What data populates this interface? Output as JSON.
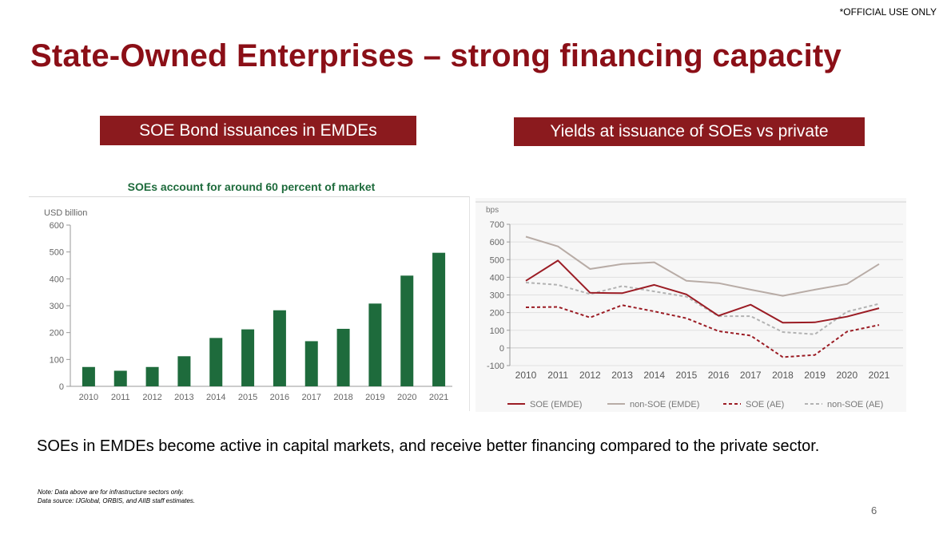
{
  "header": {
    "official": "*OFFICIAL USE ONLY",
    "title": "State-Owned Enterprises – strong financing capacity",
    "banner_left": "SOE Bond issuances in EMDEs",
    "banner_right": "Yields at issuance of SOEs vs private"
  },
  "colors": {
    "title": "#8b0f17",
    "banner": "#8b1a1e",
    "bar": "#1e6b3c",
    "soe_emde": "#9b1c24",
    "non_soe_emde": "#b8aca6",
    "soe_ae": "#9b1c24",
    "non_soe_ae": "#b2b2b2"
  },
  "chart_data": [
    {
      "type": "bar",
      "title": "SOEs account for around 60 percent of market",
      "ylabel": "USD billion",
      "xlabel": "",
      "ylim": [
        0,
        600
      ],
      "yticks": [
        0,
        100,
        200,
        300,
        400,
        500,
        600
      ],
      "grid": false,
      "categories": [
        "2010",
        "2011",
        "2012",
        "2013",
        "2014",
        "2015",
        "2016",
        "2017",
        "2018",
        "2019",
        "2020",
        "2021"
      ],
      "values": [
        72,
        58,
        72,
        112,
        180,
        212,
        283,
        168,
        214,
        308,
        412,
        497
      ]
    },
    {
      "type": "line",
      "ylabel": "bps",
      "xlabel": "",
      "ylim": [
        -100,
        700
      ],
      "yticks": [
        -100,
        0,
        100,
        200,
        300,
        400,
        500,
        600,
        700
      ],
      "grid": true,
      "legend": "bottom",
      "x": [
        "2010",
        "2011",
        "2012",
        "2013",
        "2014",
        "2015",
        "2016",
        "2017",
        "2018",
        "2019",
        "2020",
        "2021"
      ],
      "series": [
        {
          "name": "SOE (EMDE)",
          "style": "solid",
          "color": "#9b1c24",
          "values": [
            380,
            495,
            312,
            310,
            357,
            303,
            182,
            245,
            143,
            145,
            177,
            225
          ]
        },
        {
          "name": "non-SOE (EMDE)",
          "style": "solid",
          "color": "#b8aca6",
          "values": [
            630,
            575,
            447,
            475,
            485,
            380,
            367,
            330,
            295,
            330,
            362,
            475
          ]
        },
        {
          "name": "SOE (AE)",
          "style": "dashed",
          "color": "#9b1c24",
          "values": [
            230,
            232,
            172,
            242,
            207,
            168,
            95,
            70,
            -52,
            -40,
            92,
            130
          ]
        },
        {
          "name": "non-SOE (AE)",
          "style": "dashed",
          "color": "#b2b2b2",
          "values": [
            370,
            357,
            305,
            350,
            320,
            290,
            180,
            180,
            90,
            77,
            205,
            250
          ]
        }
      ]
    }
  ],
  "summary": "SOEs in EMDEs become active in capital markets, and receive better financing compared to the private sector.",
  "notes": {
    "line1": "Note: Data above are for infrastructure sectors only.",
    "line2": "Data source: IJGlobal, ORBIS, and AIIB staff estimates."
  },
  "page_number": "6"
}
